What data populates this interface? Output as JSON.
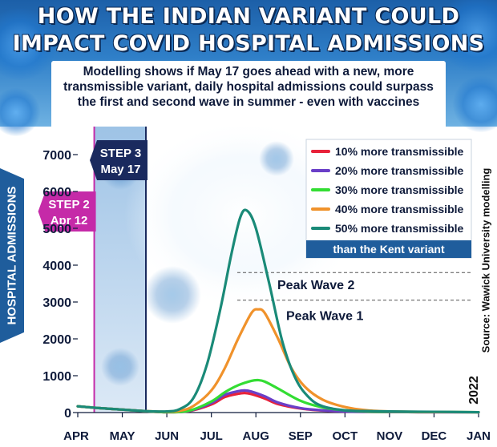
{
  "header": {
    "title": "HOW THE INDIAN VARIANT COULD IMPACT COVID HOSPITAL ADMISSIONS",
    "subtitle": "Modelling shows if May 17 goes ahead with a new, more transmissible variant, daily hospital admissions could surpass the first and second wave in summer - even with vaccines",
    "colors": {
      "top": "#1c5fa8",
      "bottom": "#6fb2e2"
    }
  },
  "side_labels": {
    "ylabel": "HOSPITAL ADMISSIONS",
    "source": "Source: Wawick University modelling",
    "year": "2022"
  },
  "chart_data": {
    "type": "line",
    "x_unit": "months from Apr 1 (month-start ticks)",
    "x_tick_labels": [
      "APR",
      "MAY",
      "JUN",
      "JUL",
      "AUG",
      "SEP",
      "OCT",
      "NOV",
      "DEC",
      "JAN"
    ],
    "xlim": [
      0,
      9
    ],
    "ylim": [
      0,
      7500
    ],
    "y_ticks": [
      0,
      1000,
      2000,
      3000,
      4000,
      5000,
      6000,
      7000
    ],
    "series": [
      {
        "name": "10% more transmissible",
        "color": "#e8223a",
        "x": [
          0,
          0.5,
          1,
          1.5,
          2,
          2.5,
          3,
          3.3,
          3.6,
          3.75,
          3.9,
          4.2,
          4.5,
          5,
          5.5,
          6,
          6.5,
          7,
          8,
          9
        ],
        "y": [
          170,
          120,
          80,
          40,
          10,
          40,
          220,
          420,
          510,
          530,
          500,
          380,
          230,
          110,
          55,
          30,
          20,
          15,
          10,
          10
        ]
      },
      {
        "name": "20% more transmissible",
        "color": "#6a3fc8",
        "x": [
          0,
          0.5,
          1,
          1.5,
          2,
          2.5,
          3,
          3.3,
          3.6,
          3.75,
          3.9,
          4.2,
          4.5,
          5,
          5.5,
          6,
          6.5,
          7,
          8,
          9
        ],
        "y": [
          170,
          120,
          80,
          40,
          10,
          45,
          260,
          480,
          580,
          600,
          570,
          440,
          270,
          120,
          60,
          30,
          20,
          15,
          10,
          10
        ]
      },
      {
        "name": "30% more transmissible",
        "color": "#33dd33",
        "x": [
          0,
          0.5,
          1,
          1.5,
          2,
          2.5,
          3,
          3.3,
          3.6,
          3.9,
          4.05,
          4.2,
          4.5,
          5,
          5.5,
          6,
          6.5,
          7,
          8,
          9
        ],
        "y": [
          170,
          120,
          80,
          40,
          10,
          50,
          300,
          550,
          740,
          860,
          880,
          840,
          650,
          320,
          140,
          60,
          30,
          20,
          15,
          10
        ]
      },
      {
        "name": "40% more transmissible",
        "color": "#f0922b",
        "x": [
          0,
          0.5,
          1,
          1.5,
          2,
          2.3,
          2.6,
          3,
          3.3,
          3.6,
          3.9,
          4.05,
          4.2,
          4.5,
          4.8,
          5.1,
          5.5,
          6,
          6.5,
          7,
          8,
          9
        ],
        "y": [
          170,
          120,
          80,
          40,
          20,
          50,
          180,
          600,
          1200,
          2000,
          2700,
          2800,
          2700,
          2000,
          1200,
          700,
          350,
          150,
          60,
          30,
          15,
          10
        ]
      },
      {
        "name": "50% more transmissible",
        "color": "#1a8a78",
        "x": [
          0,
          0.5,
          1,
          1.5,
          2,
          2.3,
          2.6,
          2.9,
          3.2,
          3.45,
          3.65,
          3.8,
          4.0,
          4.3,
          4.6,
          4.9,
          5.2,
          5.5,
          6,
          6.5,
          7,
          8,
          9
        ],
        "y": [
          170,
          120,
          80,
          40,
          30,
          100,
          400,
          1300,
          2800,
          4300,
          5300,
          5480,
          5000,
          3500,
          1900,
          900,
          400,
          170,
          60,
          40,
          30,
          20,
          10
        ]
      }
    ],
    "legend": {
      "placement": "top-right",
      "note": "than the Kent variant"
    },
    "reference_lines": [
      {
        "label": "Peak Wave 2",
        "value": 3800
      },
      {
        "label": "Peak Wave 1",
        "value": 3050
      }
    ],
    "events": [
      {
        "line1": "STEP 2",
        "line2": "Apr 12",
        "x": 0.37,
        "color": "#c52aa8"
      },
      {
        "line1": "STEP 3",
        "line2": "May 17",
        "x": 1.53,
        "color": "#1a2a5e"
      }
    ]
  }
}
